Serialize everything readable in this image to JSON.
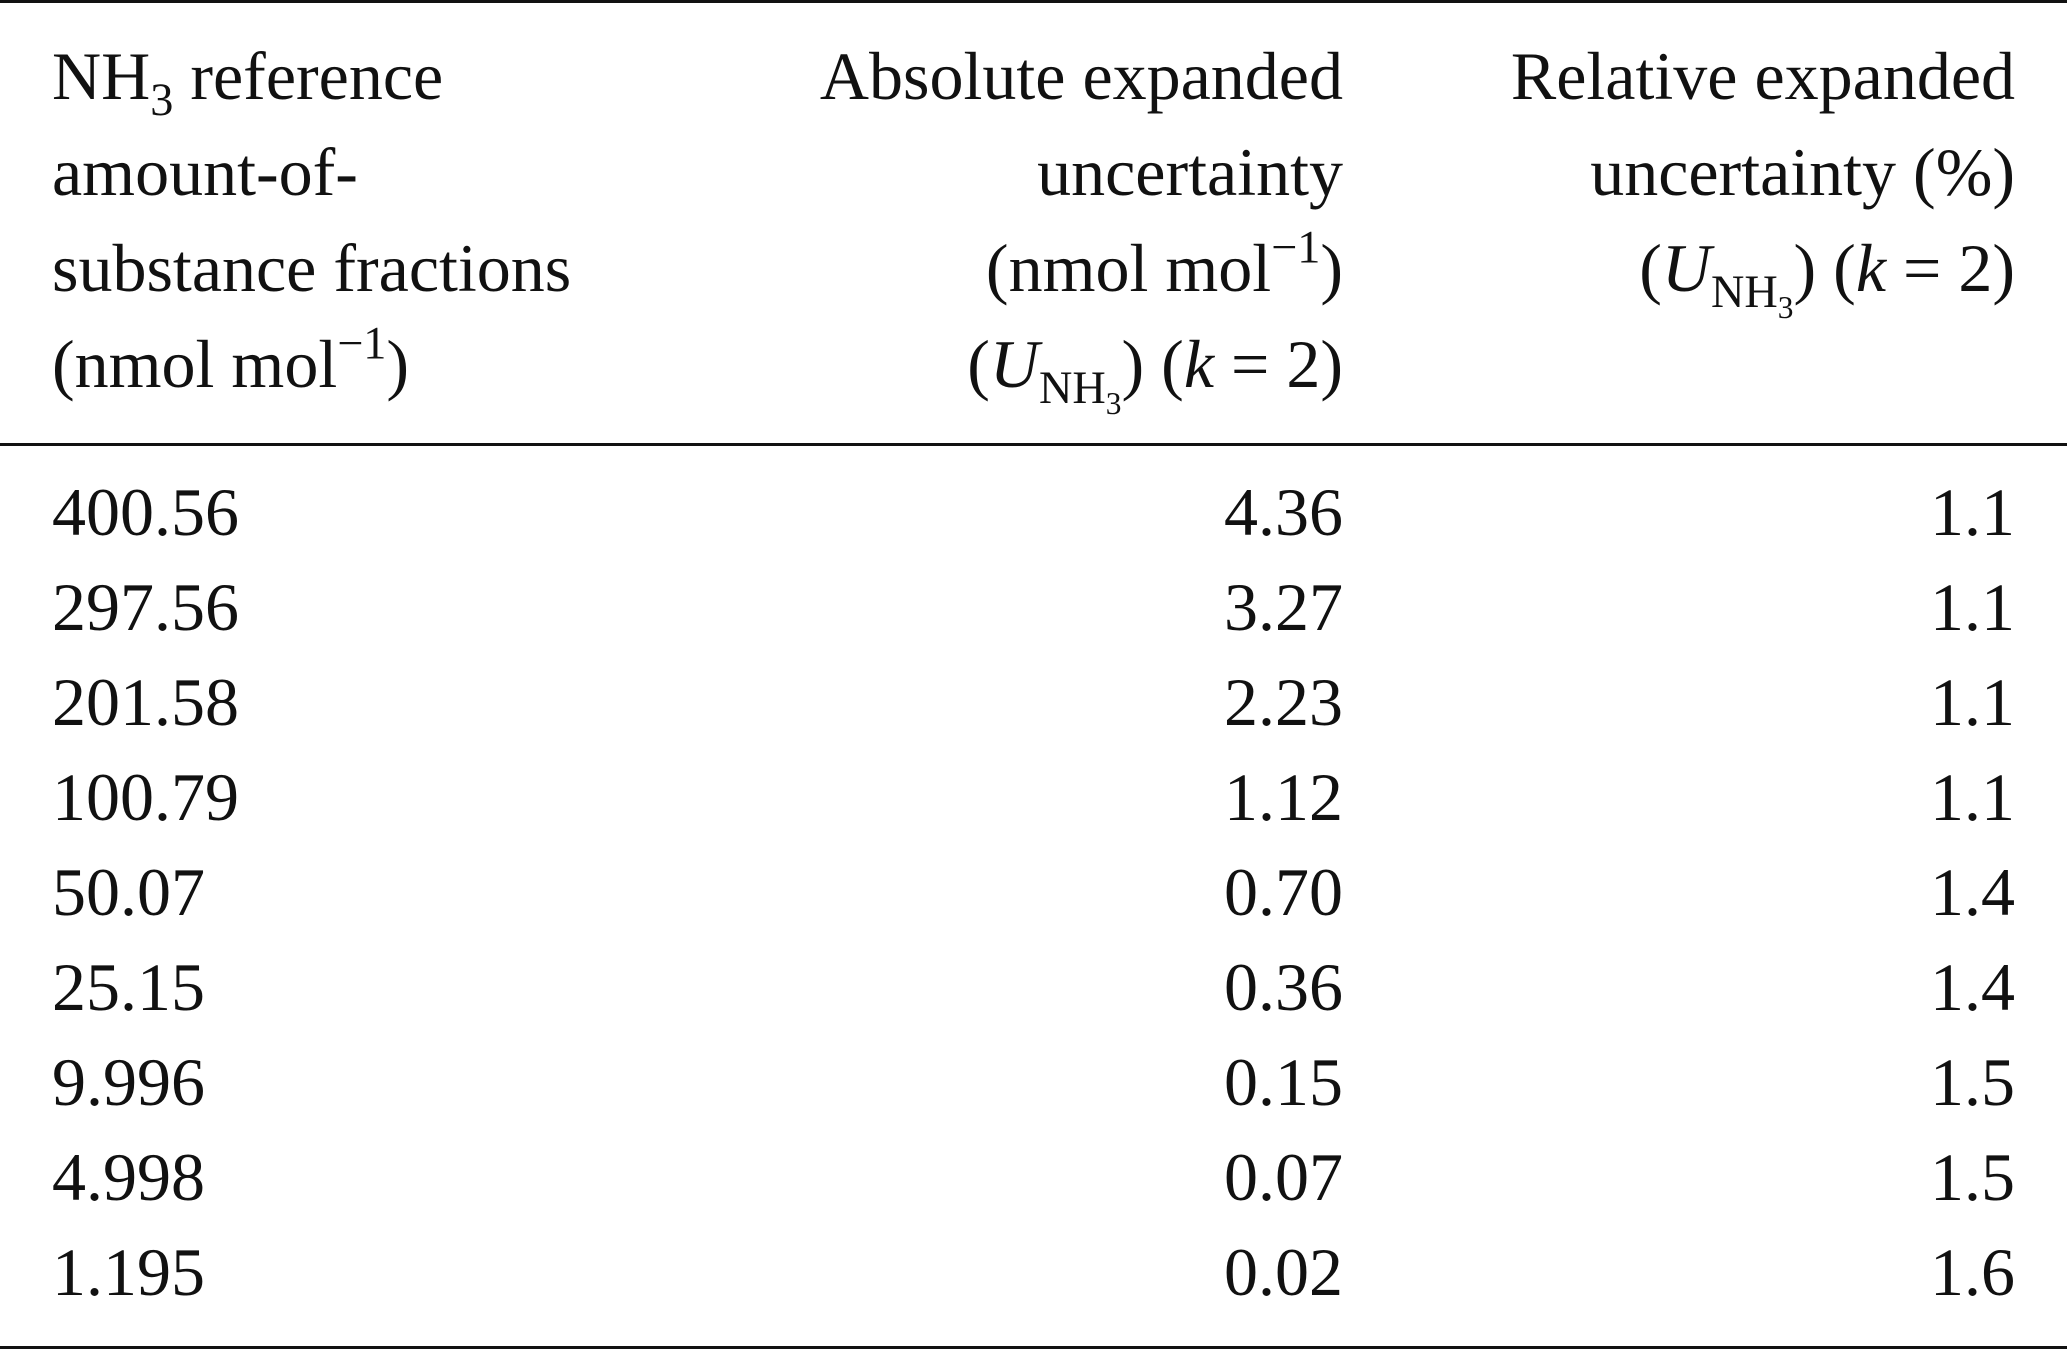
{
  "table": {
    "headers": {
      "col1": {
        "line1_pre": "NH",
        "line1_sub": "3",
        "line1_post": " reference",
        "line2": "amount-of-",
        "line3": "substance fractions",
        "line4_pre": "(nmol mol",
        "line4_sup": "−1",
        "line4_post": ")"
      },
      "col2": {
        "line1": "Absolute expanded",
        "line2": "uncertainty",
        "line3_pre": "(nmol mol",
        "line3_sup": "−1",
        "line3_post": ")",
        "line4_open": "(",
        "line4_u": "U",
        "line4_sub": "NH",
        "line4_subsub": "3",
        "line4_close": ") (",
        "line4_k": "k",
        "line4_eq": " = 2)"
      },
      "col3": {
        "line1": "Relative expanded",
        "line2": "uncertainty (%)",
        "line3_open": "(",
        "line3_u": "U",
        "line3_sub": "NH",
        "line3_subsub": "3",
        "line3_close": ") (",
        "line3_k": "k",
        "line3_eq": " = 2)"
      }
    },
    "rows": [
      {
        "reference": "400.56",
        "absolute": "4.36",
        "relative": "1.1"
      },
      {
        "reference": "297.56",
        "absolute": "3.27",
        "relative": "1.1"
      },
      {
        "reference": "201.58",
        "absolute": "2.23",
        "relative": "1.1"
      },
      {
        "reference": "100.79",
        "absolute": "1.12",
        "relative": "1.1"
      },
      {
        "reference": "50.07",
        "absolute": "0.70",
        "relative": "1.4"
      },
      {
        "reference": "25.15",
        "absolute": "0.36",
        "relative": "1.4"
      },
      {
        "reference": "9.996",
        "absolute": "0.15",
        "relative": "1.5"
      },
      {
        "reference": "4.998",
        "absolute": "0.07",
        "relative": "1.5"
      },
      {
        "reference": "1.195",
        "absolute": "0.02",
        "relative": "1.6"
      }
    ]
  }
}
